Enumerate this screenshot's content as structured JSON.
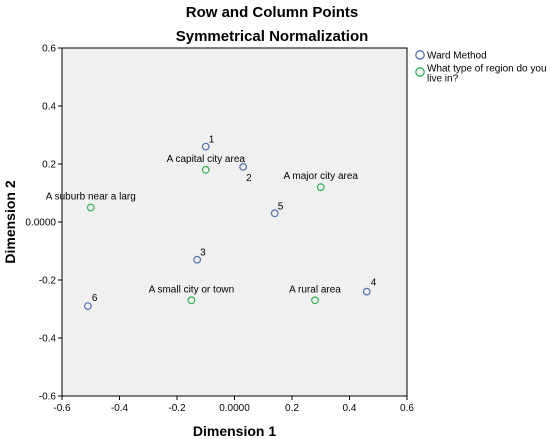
{
  "chart_data": {
    "type": "scatter",
    "title": "Row and Column Points",
    "subtitle": "Symmetrical Normalization",
    "xlabel": "Dimension 1",
    "ylabel": "Dimension 2",
    "xlim": [
      -0.6,
      0.6
    ],
    "ylim": [
      -0.6,
      0.6
    ],
    "xticks": [
      "-0.6",
      "-0.4",
      "-0.2",
      "0.0000",
      "0.2",
      "0.4",
      "0.6"
    ],
    "yticks": [
      "0.6",
      "0.4",
      "0.2",
      "0.0000",
      "-0.2",
      "-0.4",
      "-0.6"
    ],
    "grid": false,
    "legend_position": "right",
    "legend": [
      "Ward Method",
      "What type of region do you live in?"
    ],
    "series": [
      {
        "name": "Ward Method",
        "color": "#4f6fb0",
        "points": [
          {
            "label": "1",
            "x": -0.1,
            "y": 0.26
          },
          {
            "label": "2",
            "x": 0.03,
            "y": 0.19
          },
          {
            "label": "3",
            "x": -0.13,
            "y": -0.13
          },
          {
            "label": "4",
            "x": 0.46,
            "y": -0.24
          },
          {
            "label": "5",
            "x": 0.14,
            "y": 0.03
          },
          {
            "label": "6",
            "x": -0.51,
            "y": -0.29
          }
        ]
      },
      {
        "name": "What type of region do you live in?",
        "color": "#2eb04e",
        "points": [
          {
            "label": "A capital city area",
            "x": -0.1,
            "y": 0.18
          },
          {
            "label": "A major city area",
            "x": 0.3,
            "y": 0.12
          },
          {
            "label": "A suburb near a larg",
            "x": -0.5,
            "y": 0.05
          },
          {
            "label": "A small city or town",
            "x": -0.15,
            "y": -0.27
          },
          {
            "label": "A rural area",
            "x": 0.28,
            "y": -0.27
          }
        ]
      }
    ]
  }
}
